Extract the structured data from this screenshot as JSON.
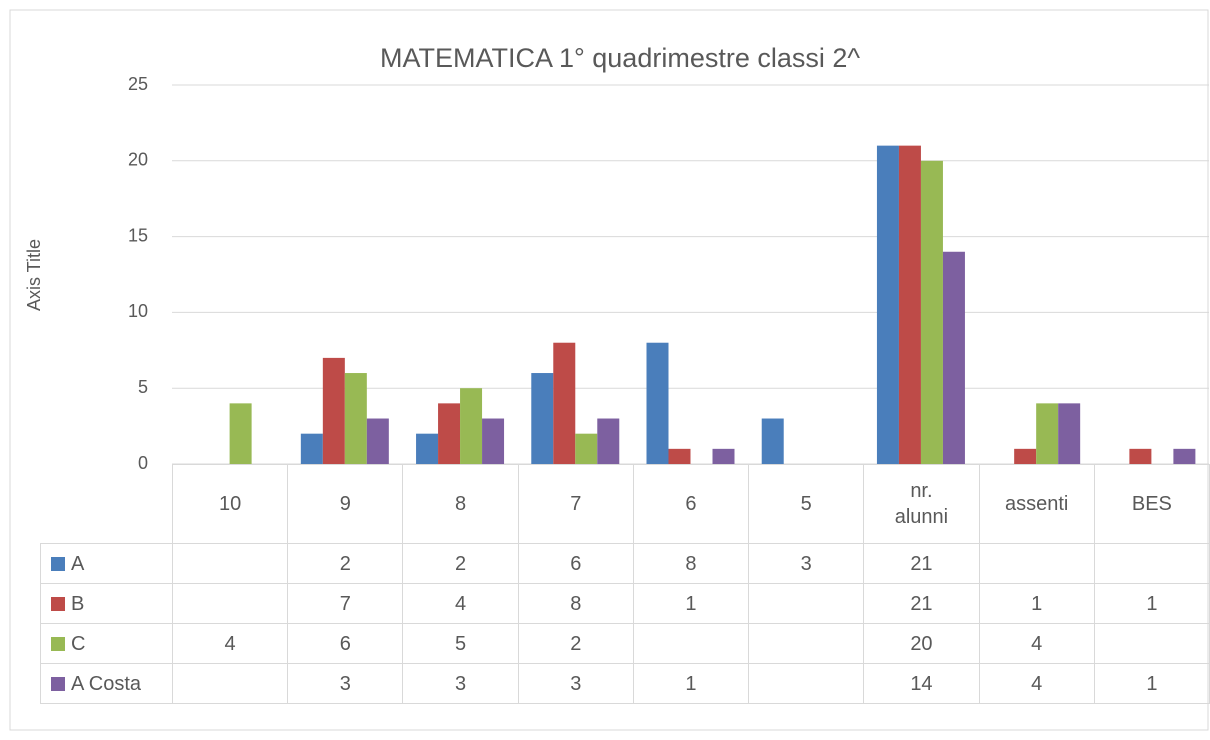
{
  "chart_data": {
    "type": "bar",
    "title": "MATEMATICA 1° quadrimestre classi 2^",
    "y_label": "Axis Title",
    "categories": [
      "10",
      "9",
      "8",
      "7",
      "6",
      "5",
      "nr. alunni",
      "assenti",
      "BES"
    ],
    "series": [
      {
        "name": "A",
        "color": "#4a7ebb",
        "values": [
          null,
          2,
          2,
          6,
          8,
          3,
          21,
          null,
          null
        ]
      },
      {
        "name": "B",
        "color": "#be4b48",
        "values": [
          null,
          7,
          4,
          8,
          1,
          null,
          21,
          1,
          1
        ]
      },
      {
        "name": "C",
        "color": "#98b954",
        "values": [
          4,
          6,
          5,
          2,
          null,
          null,
          20,
          4,
          null
        ]
      },
      {
        "name": "A Costa",
        "color": "#7d60a0",
        "values": [
          null,
          3,
          3,
          3,
          1,
          null,
          14,
          4,
          1
        ]
      }
    ],
    "ylim": [
      0,
      25
    ],
    "yticks": [
      0,
      5,
      10,
      15,
      20,
      25
    ],
    "grid": true,
    "data_table": true
  }
}
